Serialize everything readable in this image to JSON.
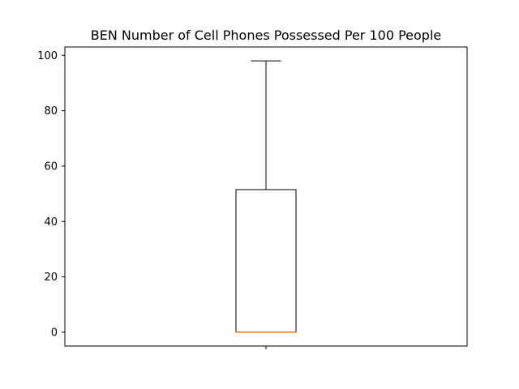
{
  "chart_data": {
    "type": "box",
    "title": "BEN Number of Cell Phones Possessed Per 100 People",
    "xlabel": "",
    "ylabel": "",
    "ylim": [
      -5,
      103
    ],
    "yticks": [
      0,
      20,
      40,
      60,
      80,
      100
    ],
    "ytick_labels": [
      "0",
      "20",
      "40",
      "60",
      "80",
      "100"
    ],
    "xticks": [
      1
    ],
    "xtick_labels": [
      ""
    ],
    "grid": false,
    "box": {
      "whisker_low": 0,
      "q1": 0,
      "median": 0,
      "q3": 51.5,
      "whisker_high": 98
    },
    "colors": {
      "box": "#000000",
      "median": "#ff7f0e",
      "axes": "#000000"
    }
  }
}
